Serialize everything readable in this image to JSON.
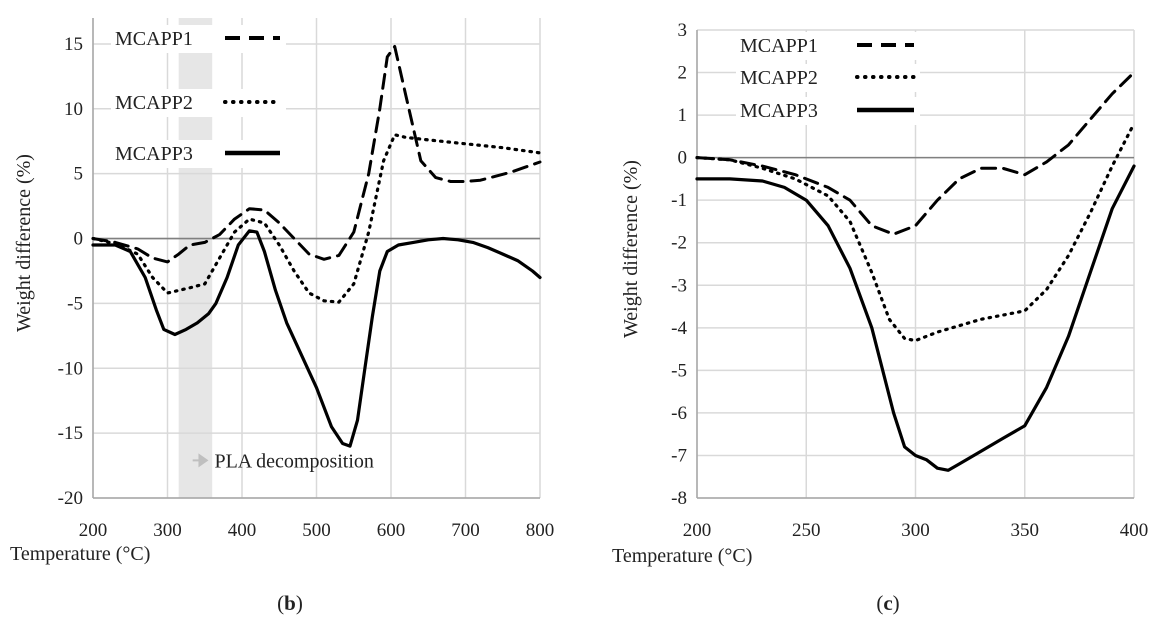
{
  "chart_data": [
    {
      "type": "line",
      "panel_label": "(b)",
      "xlabel": "Temperature (°C)",
      "ylabel": "Weight difference (%)",
      "xlim": [
        200,
        800
      ],
      "ylim": [
        -20,
        17
      ],
      "xticks": [
        200,
        300,
        400,
        500,
        600,
        700,
        800
      ],
      "yticks": [
        -20,
        -15,
        -10,
        -5,
        0,
        5,
        10,
        15
      ],
      "grid": true,
      "legend_position": "top-left",
      "shaded_region": {
        "x": [
          315,
          360
        ],
        "color": "#e6e6e6"
      },
      "annotation": {
        "text": "PLA decomposition",
        "x": 355,
        "y": -17.1
      },
      "series": [
        {
          "name": "MCAPP1",
          "style": "dashed",
          "x": [
            200,
            230,
            260,
            280,
            300,
            315,
            330,
            350,
            370,
            390,
            410,
            430,
            450,
            470,
            490,
            510,
            530,
            550,
            570,
            585,
            595,
            605,
            620,
            640,
            660,
            680,
            700,
            720,
            740,
            760,
            780,
            800
          ],
          "y": [
            0,
            -0.3,
            -0.8,
            -1.5,
            -1.8,
            -1.2,
            -0.5,
            -0.3,
            0.3,
            1.5,
            2.3,
            2.2,
            1.2,
            0,
            -1.2,
            -1.6,
            -1.3,
            0.5,
            5,
            10,
            14,
            14.8,
            11,
            6,
            4.7,
            4.4,
            4.4,
            4.5,
            4.8,
            5.1,
            5.5,
            5.9
          ]
        },
        {
          "name": "MCAPP2",
          "style": "dotted",
          "x": [
            200,
            230,
            260,
            280,
            300,
            315,
            330,
            350,
            370,
            390,
            410,
            430,
            450,
            470,
            490,
            510,
            530,
            550,
            570,
            590,
            605,
            620,
            650,
            700,
            750,
            800
          ],
          "y": [
            0,
            -0.4,
            -1.2,
            -3,
            -4.2,
            -4,
            -3.8,
            -3.5,
            -1.5,
            0.5,
            1.5,
            1.2,
            -0.5,
            -2.5,
            -4.2,
            -4.8,
            -4.9,
            -3.5,
            0.5,
            6,
            8,
            7.8,
            7.6,
            7.3,
            7,
            6.6
          ]
        },
        {
          "name": "MCAPP3",
          "style": "solid",
          "x": [
            200,
            230,
            250,
            270,
            285,
            295,
            310,
            325,
            340,
            355,
            365,
            380,
            395,
            410,
            420,
            430,
            445,
            460,
            480,
            500,
            520,
            535,
            545,
            555,
            565,
            575,
            585,
            595,
            610,
            630,
            650,
            670,
            690,
            710,
            730,
            750,
            770,
            790,
            800
          ],
          "y": [
            -0.5,
            -0.5,
            -1,
            -3,
            -5.5,
            -7,
            -7.4,
            -7,
            -6.5,
            -5.8,
            -5,
            -3,
            -0.5,
            0.6,
            0.5,
            -1,
            -4,
            -6.5,
            -9,
            -11.5,
            -14.5,
            -15.8,
            -16,
            -14,
            -10,
            -6,
            -2.5,
            -1,
            -0.5,
            -0.3,
            -0.1,
            0,
            -0.1,
            -0.3,
            -0.7,
            -1.2,
            -1.7,
            -2.5,
            -3
          ]
        }
      ]
    },
    {
      "type": "line",
      "panel_label": "(c)",
      "xlabel": "Temperature (°C)",
      "ylabel": "Weight difference (%)",
      "xlim": [
        200,
        400
      ],
      "ylim": [
        -8,
        3
      ],
      "xticks": [
        200,
        250,
        300,
        350,
        400
      ],
      "yticks": [
        -8,
        -7,
        -6,
        -5,
        -4,
        -3,
        -2,
        -1,
        0,
        1,
        2,
        3
      ],
      "grid": true,
      "legend_position": "top-left",
      "series": [
        {
          "name": "MCAPP1",
          "style": "dashed",
          "x": [
            200,
            215,
            230,
            245,
            260,
            270,
            280,
            290,
            300,
            310,
            320,
            330,
            340,
            350,
            360,
            370,
            380,
            390,
            400
          ],
          "y": [
            0,
            -0.05,
            -0.2,
            -0.4,
            -0.7,
            -1,
            -1.6,
            -1.8,
            -1.6,
            -1,
            -0.5,
            -0.25,
            -0.25,
            -0.4,
            -0.1,
            0.3,
            0.9,
            1.5,
            2
          ]
        },
        {
          "name": "MCAPP2",
          "style": "dotted",
          "x": [
            200,
            215,
            230,
            245,
            260,
            270,
            280,
            288,
            295,
            300,
            310,
            320,
            330,
            340,
            350,
            360,
            370,
            380,
            390,
            400
          ],
          "y": [
            0,
            -0.05,
            -0.25,
            -0.5,
            -0.9,
            -1.5,
            -2.7,
            -3.8,
            -4.25,
            -4.3,
            -4.1,
            -3.95,
            -3.8,
            -3.7,
            -3.6,
            -3.1,
            -2.3,
            -1.3,
            -0.2,
            0.8
          ]
        },
        {
          "name": "MCAPP3",
          "style": "solid",
          "x": [
            200,
            215,
            230,
            240,
            250,
            260,
            270,
            280,
            290,
            295,
            300,
            305,
            310,
            315,
            320,
            330,
            340,
            350,
            360,
            370,
            380,
            390,
            400
          ],
          "y": [
            -0.5,
            -0.5,
            -0.55,
            -0.7,
            -1,
            -1.6,
            -2.6,
            -4,
            -6,
            -6.8,
            -7,
            -7.1,
            -7.3,
            -7.35,
            -7.2,
            -6.9,
            -6.6,
            -6.3,
            -5.4,
            -4.2,
            -2.7,
            -1.2,
            -0.2
          ]
        }
      ]
    }
  ]
}
